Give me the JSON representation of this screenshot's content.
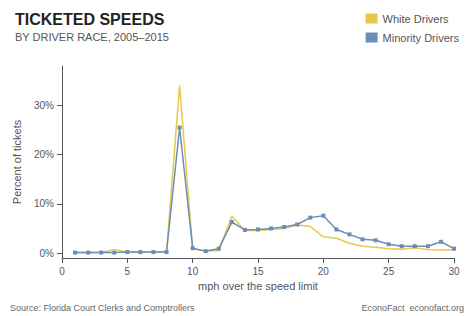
{
  "chart_data": {
    "type": "line",
    "title": "TICKETED SPEEDS",
    "subtitle": "BY DRIVER RACE, 2005–2015",
    "x_label": "mph over the speed limit",
    "y_label": "Percent of tickets",
    "annotations": [
      "Source: Florida Court Clerks and Comptrollers",
      "EconoFact  econofact.org"
    ],
    "x": [
      1,
      2,
      3,
      4,
      5,
      6,
      7,
      8,
      9,
      10,
      11,
      12,
      13,
      14,
      15,
      16,
      17,
      18,
      19,
      20,
      21,
      22,
      23,
      24,
      25,
      26,
      27,
      28,
      29,
      30
    ],
    "series": [
      {
        "name": "White Drivers",
        "color": "#E8C84A",
        "marker": "none",
        "values": [
          0.001,
          0.001,
          0.001,
          0.007,
          0.002,
          0.002,
          0.002,
          0.003,
          0.34,
          0.009,
          0.004,
          0.005,
          0.075,
          0.046,
          0.046,
          0.048,
          0.05,
          0.057,
          0.054,
          0.033,
          0.03,
          0.02,
          0.014,
          0.012,
          0.009,
          0.008,
          0.011,
          0.007,
          0.006,
          0.007
        ]
      },
      {
        "name": "Minority Drivers",
        "color": "#6B8EB5",
        "marker": "square",
        "values": [
          0.001,
          0.001,
          0.001,
          0.001,
          0.002,
          0.002,
          0.002,
          0.002,
          0.255,
          0.01,
          0.004,
          0.009,
          0.063,
          0.047,
          0.048,
          0.05,
          0.053,
          0.058,
          0.072,
          0.076,
          0.048,
          0.038,
          0.028,
          0.026,
          0.018,
          0.014,
          0.014,
          0.014,
          0.023,
          0.009
        ]
      }
    ],
    "xlim": [
      0,
      30
    ],
    "xticks": [
      0,
      5,
      10,
      15,
      20,
      25,
      30
    ],
    "ylim": [
      -0.01,
      0.38
    ],
    "yticks": [
      {
        "value": 0.0,
        "label": "0%"
      },
      {
        "value": 0.1,
        "label": "10%"
      },
      {
        "value": 0.2,
        "label": "20%"
      },
      {
        "value": 0.3,
        "label": "30%"
      }
    ],
    "grid": false,
    "legend": "upper right"
  }
}
